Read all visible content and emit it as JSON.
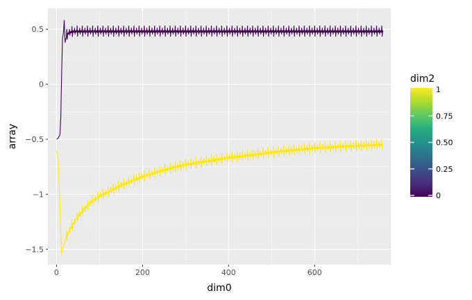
{
  "chart_data": {
    "type": "line",
    "title": "",
    "xlabel": "dim0",
    "ylabel": "array",
    "xlim": [
      -20,
      777
    ],
    "ylim": [
      -1.64,
      0.69
    ],
    "xticks": [
      0,
      200,
      400,
      600
    ],
    "xtick_labels": [
      "0",
      "200",
      "400",
      "600"
    ],
    "yticks": [
      0.5,
      0,
      -0.5,
      -1,
      -1.5
    ],
    "ytick_labels": [
      "0.5",
      "0",
      "−0.5",
      "−1",
      "−1.5"
    ],
    "grid": true,
    "background": "#ebebeb",
    "color_legend": {
      "title": "dim2",
      "colormap": "viridis",
      "ticks": [
        1,
        0.75,
        0.5,
        0.25,
        0
      ],
      "tick_labels": [
        "1",
        "0.75",
        "0.50",
        "0.25",
        "0"
      ],
      "placement": "right"
    },
    "series": [
      {
        "dim2": 0,
        "color": "#440154",
        "n_points": 760,
        "period": 12,
        "amplitude": 0.05,
        "points": [
          [
            0,
            -0.5
          ],
          [
            4,
            -0.49
          ],
          [
            8,
            -0.46
          ],
          [
            10,
            -0.3
          ],
          [
            12,
            0.1
          ],
          [
            14,
            0.42
          ],
          [
            16,
            0.46
          ],
          [
            18,
            0.58
          ],
          [
            20,
            0.38
          ],
          [
            24,
            0.45
          ],
          [
            30,
            0.47
          ],
          [
            40,
            0.48
          ],
          [
            60,
            0.48
          ],
          [
            100,
            0.48
          ],
          [
            400,
            0.48
          ],
          [
            758,
            0.48
          ]
        ]
      },
      {
        "dim2": 1,
        "color": "#fde725",
        "n_points": 760,
        "period": 12,
        "amplitude": 0.05,
        "points": [
          [
            0,
            -0.6
          ],
          [
            4,
            -0.68
          ],
          [
            8,
            -1.1
          ],
          [
            10,
            -1.35
          ],
          [
            12,
            -1.55
          ],
          [
            16,
            -1.48
          ],
          [
            20,
            -1.42
          ],
          [
            30,
            -1.33
          ],
          [
            50,
            -1.2
          ],
          [
            80,
            -1.07
          ],
          [
            100,
            -1.02
          ],
          [
            150,
            -0.92
          ],
          [
            200,
            -0.84
          ],
          [
            250,
            -0.78
          ],
          [
            300,
            -0.73
          ],
          [
            400,
            -0.67
          ],
          [
            500,
            -0.62
          ],
          [
            600,
            -0.58
          ],
          [
            700,
            -0.56
          ],
          [
            758,
            -0.55
          ]
        ]
      }
    ]
  }
}
